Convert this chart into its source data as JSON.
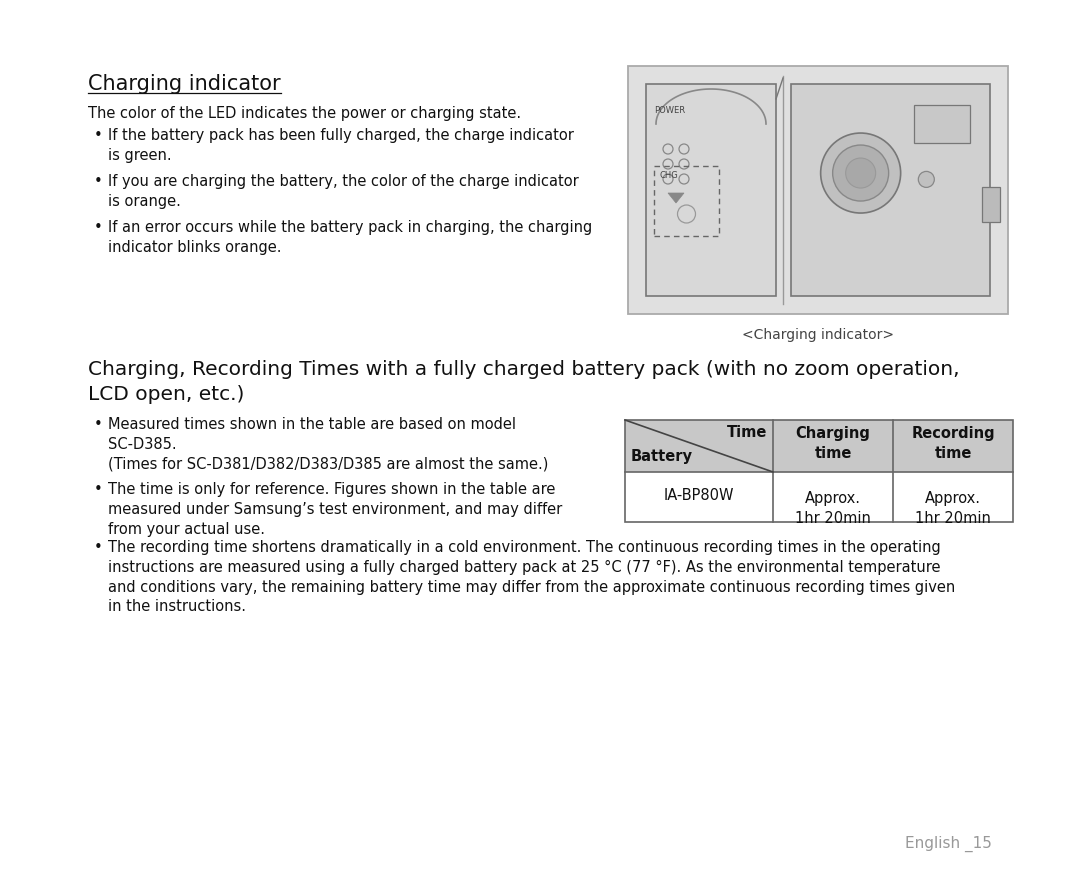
{
  "bg_color": "#ffffff",
  "text_color": "#111111",
  "section1_title": "Charging indicator",
  "section1_body": "The color of the LED indicates the power or charging state.",
  "section1_bullets": [
    "If the battery pack has been fully charged, the charge indicator\nis green.",
    "If you are charging the battery, the color of the charge indicator\nis orange.",
    "If an error occurs while the battery pack in charging, the charging\nindicator blinks orange."
  ],
  "image_caption": "<Charging indicator>",
  "section2_title": "Charging, Recording Times with a fully charged battery pack (with no zoom operation,\nLCD open, etc.)",
  "section2_bullets_left": [
    "Measured times shown in the table are based on model\nSC-D385.\n(Times for SC-D381/D382/D383/D385 are almost the same.)",
    "The time is only for reference. Figures shown in the table are\nmeasured under Samsung’s test environment, and may differ\nfrom your actual use."
  ],
  "section2_bullet3": "The recording time shortens dramatically in a cold environment. The continuous recording times in the operating\ninstructions are measured using a fully charged battery pack at 25 °C (77 °F). As the environmental temperature\nand conditions vary, the remaining battery time may differ from the approximate continuous recording times given\nin the instructions.",
  "footer_text": "English _15",
  "header_bg": "#c8c8c8",
  "img_border_color": "#aaaaaa",
  "img_fill_color": "#e0e0e0",
  "table_border_color": "#666666"
}
